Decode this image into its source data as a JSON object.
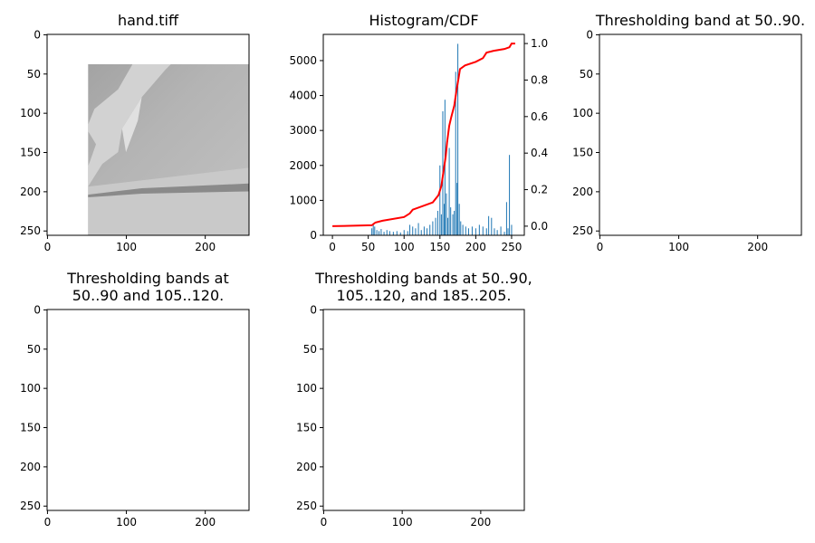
{
  "chart_data": [
    {
      "type": "image",
      "image": "hand",
      "title": [
        "hand.tiff"
      ],
      "xlim": [
        -0.5,
        255.5
      ],
      "ylim": [
        255.5,
        -0.5
      ],
      "xticks": [
        0,
        100,
        200
      ],
      "yticks": [
        0,
        50,
        100,
        150,
        200,
        250
      ]
    },
    {
      "type": "histogram_cdf",
      "title": [
        "Histogram/CDF"
      ],
      "xlim": [
        -12.75,
        267.75
      ],
      "ylim": [
        0,
        5750
      ],
      "y2lim": [
        -0.05,
        1.05
      ],
      "xticks": [
        0,
        50,
        100,
        150,
        200,
        250
      ],
      "yticks": [
        0,
        1000,
        2000,
        3000,
        4000,
        5000
      ],
      "y2ticks": [
        {
          "value": 0,
          "label": "0.0"
        },
        0.2,
        0.4,
        0.6,
        0.8,
        {
          "value": 1,
          "label": "1.0"
        }
      ],
      "series": [
        {
          "type": "bar",
          "color": "#1f77b4",
          "x": [
            55,
            57,
            59,
            62,
            65,
            68,
            72,
            76,
            80,
            85,
            90,
            95,
            100,
            105,
            108,
            112,
            116,
            120,
            124,
            128,
            132,
            136,
            140,
            144,
            147,
            150,
            152,
            154,
            156,
            157,
            159,
            161,
            163,
            165,
            168,
            170,
            172,
            174,
            175,
            177,
            179,
            182,
            186,
            190,
            195,
            200,
            205,
            210,
            215,
            218,
            222,
            226,
            230,
            235,
            240,
            243,
            245,
            247,
            250
          ],
          "values": [
            200,
            300,
            250,
            150,
            120,
            180,
            100,
            150,
            120,
            100,
            120,
            80,
            150,
            120,
            300,
            250,
            200,
            350,
            150,
            250,
            200,
            300,
            400,
            500,
            700,
            2000,
            600,
            3550,
            900,
            3880,
            1200,
            500,
            2500,
            800,
            600,
            700,
            4680,
            1500,
            5480,
            900,
            400,
            300,
            250,
            200,
            250,
            200,
            300,
            250,
            200,
            550,
            500,
            200,
            150,
            250,
            100,
            950,
            200,
            2300,
            300
          ]
        },
        {
          "type": "line",
          "axis": "y2",
          "color": "#ff0000",
          "x": [
            0,
            55,
            60,
            70,
            100,
            108,
            112,
            140,
            148,
            152,
            155,
            158,
            160,
            163,
            166,
            170,
            173,
            176,
            178,
            185,
            200,
            210,
            215,
            225,
            240,
            247,
            250,
            255
          ],
          "values": [
            0.0,
            0.005,
            0.02,
            0.03,
            0.05,
            0.07,
            0.09,
            0.13,
            0.17,
            0.22,
            0.3,
            0.38,
            0.46,
            0.55,
            0.6,
            0.66,
            0.74,
            0.81,
            0.86,
            0.88,
            0.9,
            0.92,
            0.95,
            0.96,
            0.97,
            0.98,
            1.0,
            1.0
          ]
        }
      ]
    },
    {
      "type": "image",
      "image": "band1",
      "title": [
        "Thresholding band at 50..90."
      ],
      "xlim": [
        -0.5,
        255.5
      ],
      "ylim": [
        255.5,
        -0.5
      ],
      "xticks": [
        0,
        100,
        200
      ],
      "yticks": [
        0,
        50,
        100,
        150,
        200,
        250
      ]
    },
    {
      "type": "image",
      "image": "band2",
      "title": [
        "Thresholding bands at",
        "50..90 and 105..120."
      ],
      "xlim": [
        -0.5,
        255.5
      ],
      "ylim": [
        255.5,
        -0.5
      ],
      "xticks": [
        0,
        100,
        200
      ],
      "yticks": [
        0,
        50,
        100,
        150,
        200,
        250
      ]
    },
    {
      "type": "image",
      "image": "band3",
      "title": [
        "Thresholding bands at 50..90,",
        "105..120, and 185..205."
      ],
      "xlim": [
        -0.5,
        255.5
      ],
      "ylim": [
        255.5,
        -0.5
      ],
      "xticks": [
        0,
        100,
        200
      ],
      "yticks": [
        0,
        50,
        100,
        150,
        200,
        250
      ]
    }
  ]
}
